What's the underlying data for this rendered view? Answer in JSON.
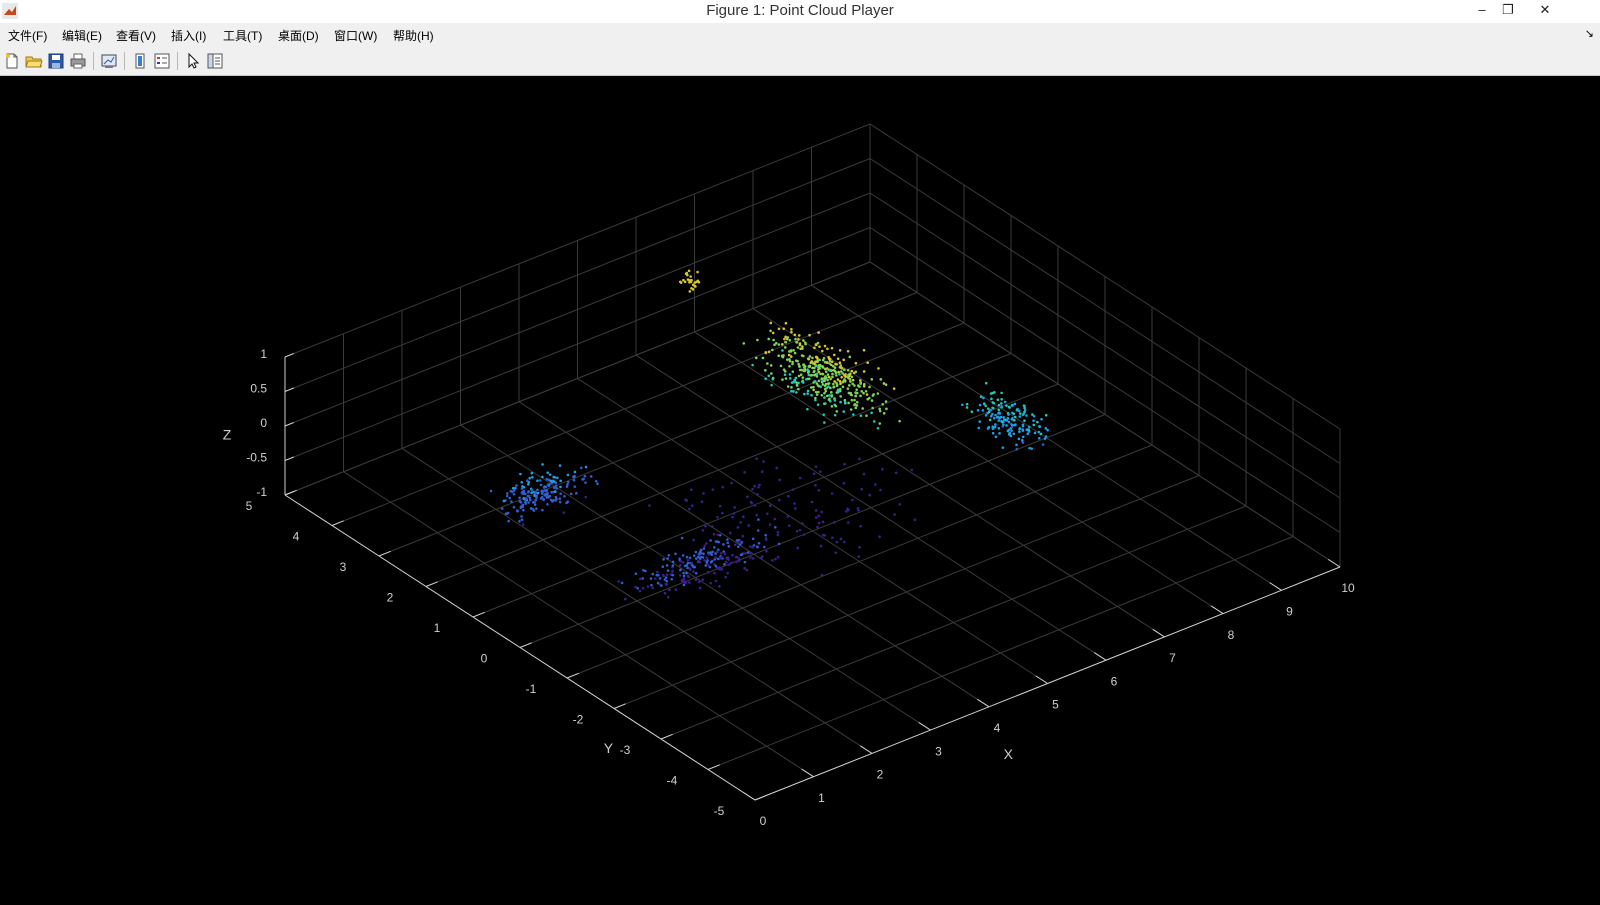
{
  "window": {
    "title": "Figure 1: Point Cloud Player",
    "minimize_glyph": "–",
    "restore_glyph": "❐",
    "close_glyph": "✕"
  },
  "menu": {
    "items": [
      "文件(F)",
      "编辑(E)",
      "查看(V)",
      "插入(I)",
      "工具(T)",
      "桌面(D)",
      "窗口(W)",
      "帮助(H)"
    ],
    "overflow_glyph": "↘"
  },
  "toolbar": {
    "icons": [
      "new-figure-icon",
      "open-file-icon",
      "save-icon",
      "print-icon",
      "link-plot-icon",
      "colorbar-icon",
      "legend-icon",
      "edit-plot-icon",
      "property-inspector-icon"
    ]
  },
  "colors": {
    "background": "#000000",
    "grid": "#3a3a3a",
    "axis": "#cfcfcf",
    "colormap": [
      "#3b1f8c",
      "#2f5fd0",
      "#1aa0e8",
      "#22c9b6",
      "#7fd25a",
      "#d9c62e",
      "#f2c038"
    ]
  },
  "chart_data": {
    "type": "scatter",
    "dimensions": 3,
    "xlabel": "X",
    "ylabel": "Y",
    "zlabel": "Z",
    "xlim": [
      0,
      10
    ],
    "ylim": [
      -5,
      5
    ],
    "zlim": [
      -1,
      1
    ],
    "xticks": [
      "0",
      "1",
      "2",
      "3",
      "4",
      "5",
      "6",
      "7",
      "8",
      "9",
      "10"
    ],
    "yticks": [
      "-5",
      "-4",
      "-3",
      "-2",
      "-1",
      "0",
      "1",
      "2",
      "3",
      "4",
      "5"
    ],
    "zticks": [
      "-1",
      "-0.5",
      "0",
      "0.5",
      "1"
    ],
    "grid": true,
    "colored_by": "z",
    "clusters": [
      {
        "center": [
          6.2,
          1.2,
          0.3
        ],
        "spread": [
          0.6,
          1.6,
          0.5
        ],
        "count": 420
      },
      {
        "center": [
          8.0,
          -0.4,
          -0.2
        ],
        "spread": [
          0.5,
          0.9,
          0.4
        ],
        "count": 160
      },
      {
        "center": [
          2.2,
          2.3,
          -0.5
        ],
        "spread": [
          1.0,
          0.4,
          0.3
        ],
        "count": 180
      },
      {
        "center": [
          3.0,
          -0.2,
          -0.7
        ],
        "spread": [
          1.6,
          0.5,
          0.3
        ],
        "count": 220
      },
      {
        "center": [
          6.0,
          3.8,
          0.6
        ],
        "spread": [
          0.2,
          0.2,
          0.2
        ],
        "count": 25
      },
      {
        "center": [
          5.0,
          0.5,
          -0.9
        ],
        "spread": [
          2.5,
          2.0,
          0.2
        ],
        "count": 120
      }
    ]
  }
}
